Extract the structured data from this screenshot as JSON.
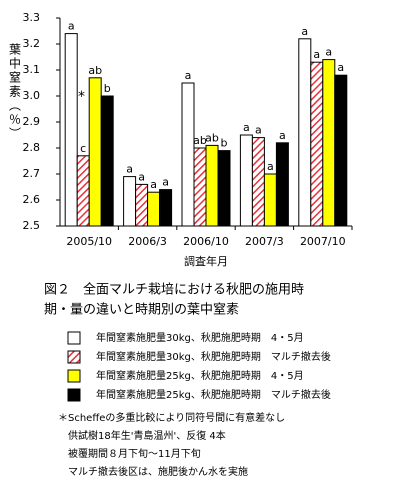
{
  "chart_data": {
    "type": "bar",
    "categories": [
      "2005/10",
      "2006/3",
      "2006/10",
      "2007/3",
      "2007/10"
    ],
    "series": [
      {
        "name": "年間窒素施肥量30kg、秋肥施肥時期　4・5月",
        "color": "#ffffff",
        "values": [
          3.24,
          2.69,
          3.05,
          2.85,
          3.22
        ],
        "letters": [
          "a",
          "a",
          "a",
          "a",
          "a"
        ]
      },
      {
        "name": "年間窒素施肥量30kg、秋肥施肥時期　マルチ撤去後",
        "color": "#e8303a",
        "hatch": true,
        "values": [
          2.77,
          2.66,
          2.8,
          2.84,
          3.13
        ],
        "letters": [
          "c",
          "a",
          "ab",
          "a",
          "a"
        ]
      },
      {
        "name": "年間窒素施肥量25kg、秋肥施肥時期　4・5月",
        "color": "#ffff00",
        "values": [
          3.07,
          2.63,
          2.81,
          2.7,
          3.14
        ],
        "letters": [
          "ab",
          "a",
          "ab",
          "a",
          "a"
        ]
      },
      {
        "name": "年間窒素施肥量25kg、秋肥施肥時期　マルチ撤去後",
        "color": "#000000",
        "values": [
          3.0,
          2.64,
          2.79,
          2.82,
          3.08
        ],
        "letters": [
          "b",
          "a",
          "b",
          "a",
          "a"
        ]
      }
    ],
    "ylim": [
      2.5,
      3.3
    ],
    "yticks": [
      2.5,
      2.6,
      2.7,
      2.8,
      2.9,
      {
        "value": 3,
        "label": "3.0"
      },
      3.1,
      3.2,
      3.3
    ],
    "ylabel": "葉中窒素（％）",
    "xlabel": "調査年月",
    "annotation": "*",
    "caption": [
      "図２　全面マルチ栽培における秋肥の施用時",
      "期・量の違いと時期別の葉中窒素"
    ],
    "notes": [
      "＊Scheffeの多重比較により同符号間に有意差なし",
      "　供試樹18年生'青島温州'、反復 4本",
      "　被覆期間８月下旬～11月下旬",
      "　マルチ撤去後区は、施肥後かん水を実施"
    ]
  }
}
